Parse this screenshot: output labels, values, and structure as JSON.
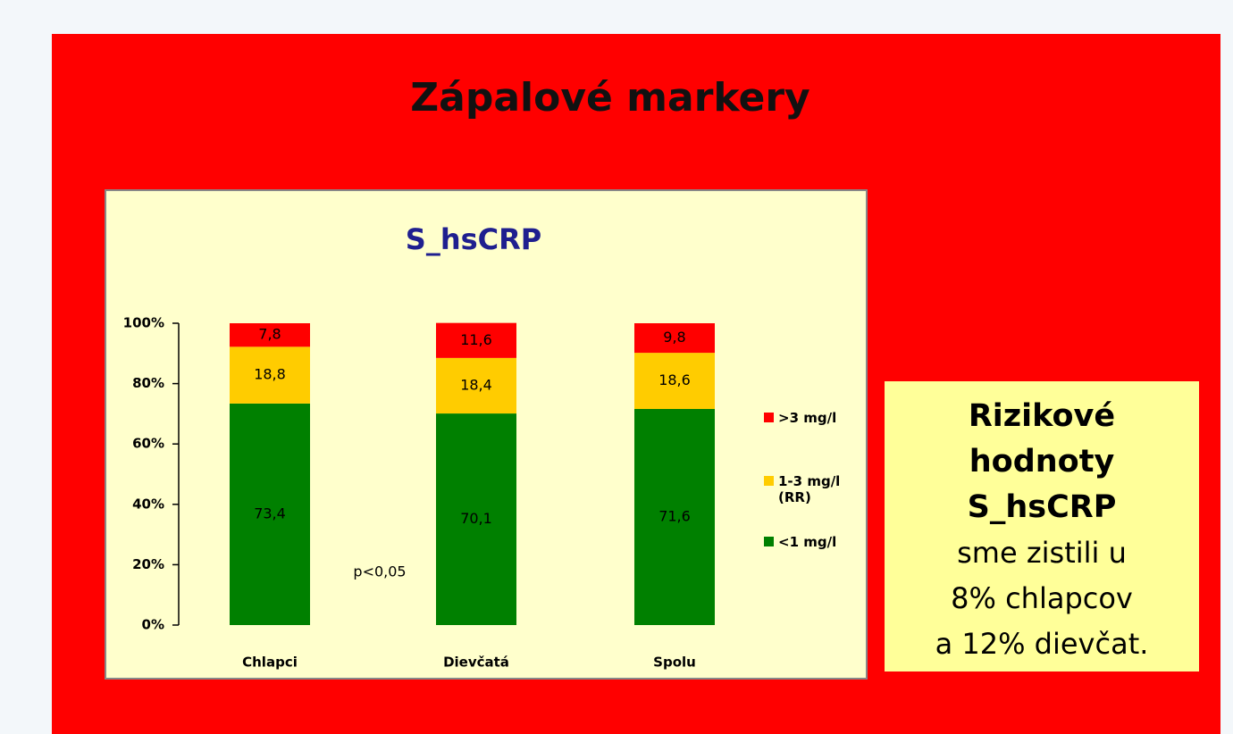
{
  "title": "Zápalové markery",
  "chart_data": {
    "type": "bar",
    "stacked": true,
    "title": "S_hsCRP",
    "categories": [
      "Chlapci",
      "Dievčatá",
      "Spolu"
    ],
    "series": [
      {
        "name": "<1 mg/l",
        "color": "#008000",
        "values": [
          73.4,
          70.1,
          71.6
        ],
        "value_labels": [
          "73,4",
          "70,1",
          "71,6"
        ]
      },
      {
        "name": "1-3 mg/l (RR)",
        "color": "#ffcc00",
        "values": [
          18.8,
          18.4,
          18.6
        ],
        "value_labels": [
          "18,8",
          "18,4",
          "18,6"
        ]
      },
      {
        "name": ">3 mg/l",
        "color": "#ff0000",
        "values": [
          7.8,
          11.6,
          9.8
        ],
        "value_labels": [
          "7,8",
          "11,6",
          "9,8"
        ]
      }
    ],
    "ylim": [
      0,
      100
    ],
    "yticks": [
      {
        "value": 0,
        "label": "0%"
      },
      {
        "value": 20,
        "label": "20%"
      },
      {
        "value": 40,
        "label": "40%"
      },
      {
        "value": 60,
        "label": "60%"
      },
      {
        "value": 80,
        "label": "80%"
      },
      {
        "value": 100,
        "label": "100%"
      }
    ],
    "annotation": "p<0,05",
    "legend": "right"
  },
  "note": {
    "bold_lines": [
      "Rizikové",
      "hodnoty",
      "S_hsCRP"
    ],
    "lines": [
      "sme zistili u",
      "8% chlapcov",
      "a 12% dievčat."
    ]
  }
}
